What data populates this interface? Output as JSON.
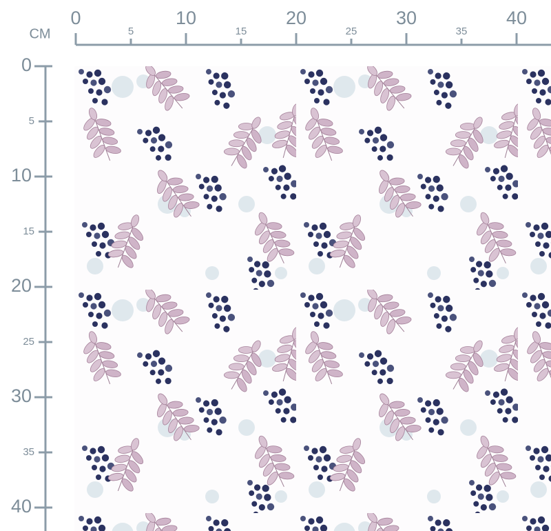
{
  "ruler": {
    "unit": "CM",
    "top": [
      0,
      5,
      10,
      15,
      20,
      25,
      30,
      35,
      40
    ],
    "left": [
      0,
      5,
      10,
      15,
      20,
      25,
      30,
      35,
      40
    ]
  }
}
